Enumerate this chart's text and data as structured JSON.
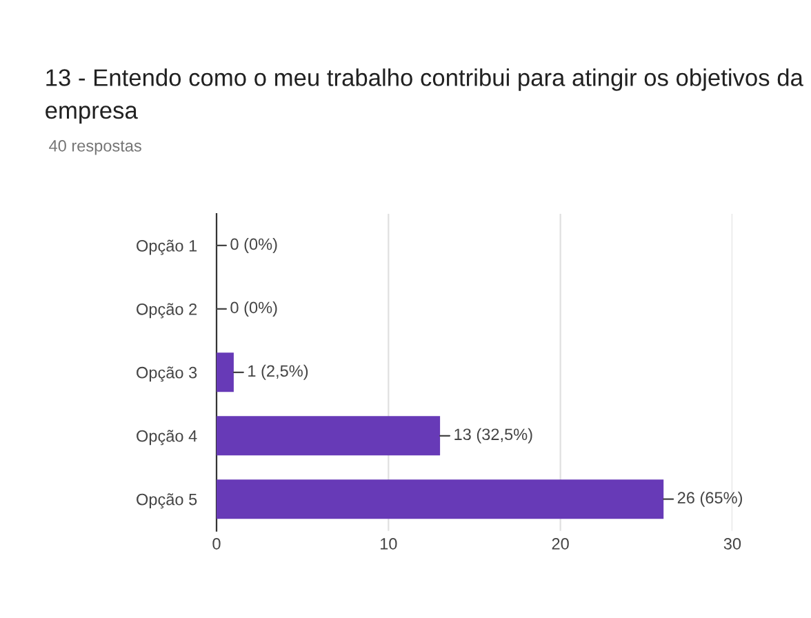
{
  "chart_data": {
    "type": "bar",
    "orientation": "horizontal",
    "title": "13 - Entendo como o meu trabalho contribui para atingir os objetivos da empresa",
    "subtitle": "40 respostas",
    "categories": [
      "Opção 1",
      "Opção 2",
      "Opção 3",
      "Opção 4",
      "Opção 5"
    ],
    "values": [
      0,
      0,
      1,
      13,
      26
    ],
    "value_labels": [
      "0 (0%)",
      "0 (0%)",
      "1 (2,5%)",
      "13 (32,5%)",
      "26 (65%)"
    ],
    "color": "#673ab7",
    "xlim": [
      0,
      30
    ],
    "xticks": [
      0,
      10,
      20,
      30
    ],
    "grid": "x",
    "legend": false
  }
}
